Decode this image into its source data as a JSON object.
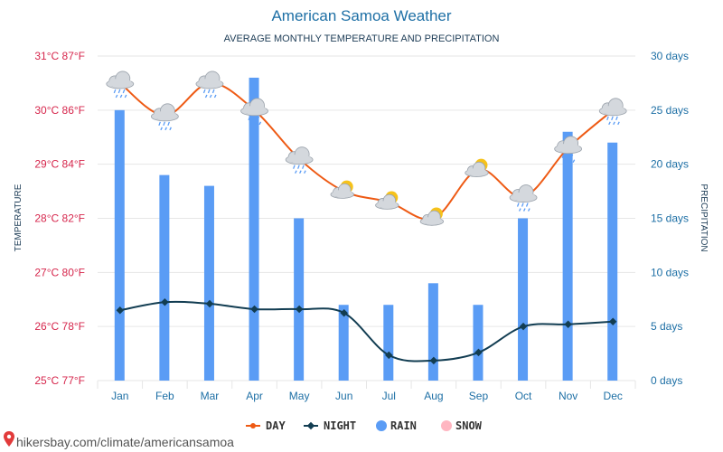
{
  "header": {
    "title": "American Samoa Weather",
    "subtitle": "AVERAGE MONTHLY TEMPERATURE AND PRECIPITATION"
  },
  "watermark": "hikersbay.com/climate/americansamoa",
  "colors": {
    "day": "#ee5a14",
    "night": "#123d52",
    "rain": "#5a9cf5",
    "snow": "#ffb6c1",
    "left_axis": "#d6264c",
    "right_axis": "#1d6fa5"
  },
  "chart_data": {
    "type": "line",
    "title": "American Samoa Weather",
    "subtitle": "AVERAGE MONTHLY TEMPERATURE AND PRECIPITATION",
    "ylabel_left": "TEMPERATURE",
    "ylabel_right": "PRECIPITATION",
    "categories": [
      "Jan",
      "Feb",
      "Mar",
      "Apr",
      "May",
      "Jun",
      "Jul",
      "Aug",
      "Sep",
      "Oct",
      "Nov",
      "Dec"
    ],
    "yticks_left": [
      "25°C 77°F",
      "26°C 78°F",
      "27°C 80°F",
      "28°C 82°F",
      "29°C 84°F",
      "30°C 86°F",
      "31°C 87°F"
    ],
    "yticks_right": [
      "0 days",
      "5 days",
      "10 days",
      "15 days",
      "20 days",
      "25 days",
      "30 days"
    ],
    "ylim_left": [
      25,
      31
    ],
    "ylim_right": [
      0,
      30
    ],
    "series": [
      {
        "name": "DAY",
        "axis": "left",
        "type": "line",
        "values": [
          30.5,
          29.9,
          30.5,
          30.0,
          29.1,
          28.5,
          28.3,
          28.0,
          28.9,
          28.4,
          29.3,
          30.0
        ]
      },
      {
        "name": "NIGHT",
        "axis": "left",
        "type": "line",
        "values": [
          26.3,
          26.45,
          26.42,
          26.32,
          26.32,
          26.25,
          25.47,
          25.37,
          25.52,
          26.0,
          26.04,
          26.09
        ]
      },
      {
        "name": "RAIN",
        "axis": "right",
        "type": "bar",
        "values": [
          25,
          19,
          18,
          28,
          15,
          7,
          7,
          9,
          7,
          15,
          23,
          22
        ]
      },
      {
        "name": "SNOW",
        "axis": "right",
        "type": "bar",
        "values": [
          0,
          0,
          0,
          0,
          0,
          0,
          0,
          0,
          0,
          0,
          0,
          0
        ]
      }
    ],
    "weather_icons": [
      "rain",
      "rain",
      "rain",
      "rain",
      "rain",
      "partly-sunny",
      "partly-sunny",
      "partly-sunny",
      "partly-sunny",
      "rain",
      "rain",
      "rain"
    ],
    "legend": [
      "DAY",
      "NIGHT",
      "RAIN",
      "SNOW"
    ],
    "legend_position": "bottom-center",
    "grid": true
  }
}
